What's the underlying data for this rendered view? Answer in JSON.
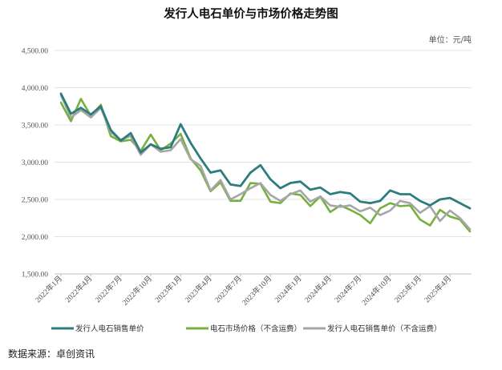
{
  "chart_data": {
    "type": "line",
    "title": "发行人电石单价与市场价格走势图",
    "unit": "单位：元/吨",
    "source": "数据来源：卓创资讯",
    "ylim": [
      1500,
      4500
    ],
    "y_ticks": [
      "1,500.00",
      "2,000.00",
      "2,500.00",
      "3,000.00",
      "3,500.00",
      "4,000.00",
      "4,500.00"
    ],
    "y_tick_values": [
      1500,
      2000,
      2500,
      3000,
      3500,
      4000,
      4500
    ],
    "x": [
      "2022年1月",
      "2022年2月",
      "2022年3月",
      "2022年4月",
      "2022年5月",
      "2022年6月",
      "2022年7月",
      "2022年8月",
      "2022年9月",
      "2022年10月",
      "2022年11月",
      "2022年12月",
      "2023年1月",
      "2023年2月",
      "2023年3月",
      "2023年4月",
      "2023年5月",
      "2023年6月",
      "2023年7月",
      "2023年8月",
      "2023年9月",
      "2023年10月",
      "2023年11月",
      "2023年12月",
      "2024年1月",
      "2024年2月",
      "2024年3月",
      "2024年4月",
      "2024年5月",
      "2024年6月",
      "2024年7月",
      "2024年8月",
      "2024年9月",
      "2024年10月",
      "2024年11月",
      "2024年12月",
      "2025年1月",
      "2025年2月",
      "2025年3月",
      "2025年4月",
      "2025年5月",
      "2025年6月"
    ],
    "x_tick_labels": [
      "2022年1月",
      "2022年4月",
      "2022年7月",
      "2022年10月",
      "2023年1月",
      "2023年4月",
      "2023年7月",
      "2023年10月",
      "2024年1月",
      "2024年4月",
      "2024年7月",
      "2024年10月",
      "2025年1月",
      "2025年4月"
    ],
    "x_tick_every": 3,
    "grid": true,
    "legend_position": "bottom",
    "series": [
      {
        "name": "发行人电石销售单价",
        "color": "#2e7d7c",
        "values": [
          3920,
          3650,
          3730,
          3640,
          3750,
          3430,
          3290,
          3390,
          3130,
          3240,
          3180,
          3200,
          3510,
          3260,
          3050,
          2860,
          2890,
          2700,
          2680,
          2860,
          2960,
          2770,
          2650,
          2720,
          2740,
          2630,
          2660,
          2570,
          2600,
          2580,
          2470,
          2450,
          2480,
          2620,
          2570,
          2570,
          2480,
          2420,
          2500,
          2520,
          2450,
          2380
        ]
      },
      {
        "name": "电石市场价格（不含运费）",
        "color": "#76b041",
        "values": [
          3800,
          3550,
          3850,
          3620,
          3770,
          3350,
          3280,
          3300,
          3150,
          3370,
          3160,
          3250,
          3380,
          3050,
          2890,
          2610,
          2730,
          2480,
          2480,
          2720,
          2710,
          2470,
          2450,
          2580,
          2560,
          2410,
          2540,
          2330,
          2420,
          2360,
          2290,
          2180,
          2380,
          2450,
          2410,
          2420,
          2230,
          2150,
          2360,
          2270,
          2230,
          2070
        ]
      },
      {
        "name": "发行人电石销售单价（不含运费）",
        "color": "#a6a6a6",
        "values": [
          3900,
          3600,
          3700,
          3600,
          3730,
          3400,
          3300,
          3350,
          3100,
          3240,
          3140,
          3160,
          3310,
          3040,
          2950,
          2620,
          2760,
          2500,
          2570,
          2650,
          2720,
          2560,
          2480,
          2570,
          2620,
          2470,
          2540,
          2420,
          2400,
          2420,
          2340,
          2390,
          2290,
          2350,
          2480,
          2450,
          2320,
          2410,
          2210,
          2350,
          2250,
          2100
        ]
      }
    ]
  }
}
